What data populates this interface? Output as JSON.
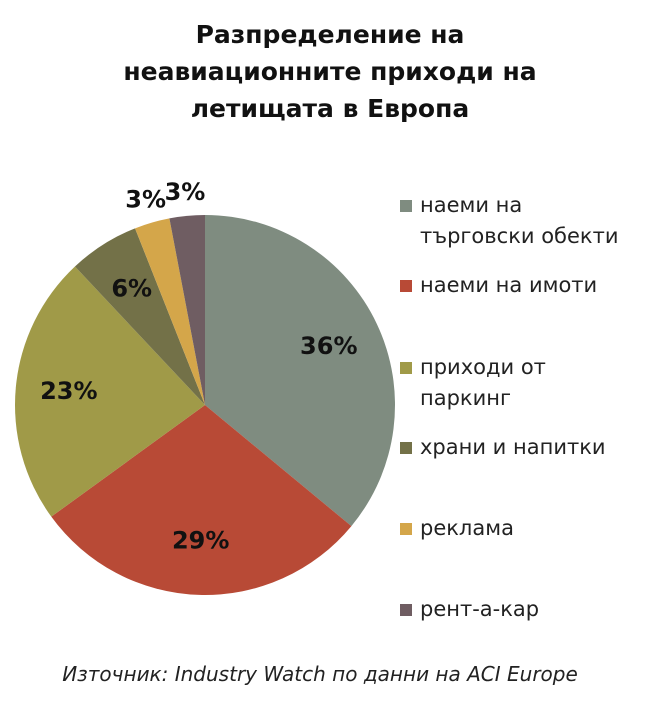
{
  "chart_data": {
    "type": "pie",
    "title": "Разпределение на неавиационните приходи на летищата в Европа",
    "categories": [
      "наеми на търговски обекти",
      "наеми на имоти",
      "приходи от паркинг",
      "храни и напитки",
      "реклама",
      "рент-а-кар"
    ],
    "values": [
      36,
      29,
      23,
      6,
      3,
      3
    ],
    "value_labels": [
      "36%",
      "29%",
      "23%",
      "6%",
      "3%",
      "3%"
    ],
    "colors": [
      "#7f8c80",
      "#b84a36",
      "#a09a48",
      "#737148",
      "#d4a64a",
      "#6f5d62"
    ],
    "legend": "right",
    "source": "Източник: Industry Watch по данни на ACI Europe"
  }
}
